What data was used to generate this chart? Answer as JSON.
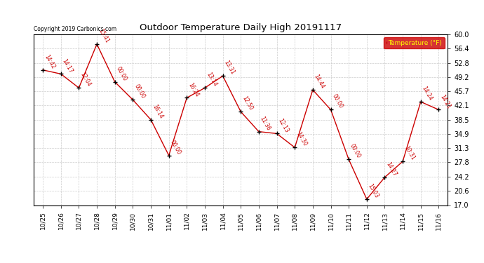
{
  "title": "Outdoor Temperature Daily High 20191117",
  "copyright": "Copyright 2019 Carbonics.com",
  "legend_label": "Temperature (°F)",
  "x_labels": [
    "10/25",
    "10/26",
    "10/27",
    "10/28",
    "10/29",
    "10/30",
    "10/31",
    "11/01",
    "11/02",
    "11/03",
    "11/04",
    "11/05",
    "11/06",
    "11/07",
    "11/08",
    "11/09",
    "11/10",
    "11/11",
    "11/12",
    "11/13",
    "11/14",
    "11/15",
    "11/16"
  ],
  "y_values": [
    51.0,
    50.0,
    46.5,
    57.5,
    48.0,
    43.5,
    38.5,
    29.5,
    44.0,
    46.5,
    49.5,
    40.5,
    35.5,
    35.0,
    31.5,
    46.0,
    41.0,
    28.5,
    18.5,
    24.0,
    28.0,
    43.0,
    41.0
  ],
  "time_labels": [
    "14:42",
    "14:17",
    "12:04",
    "15:41",
    "00:00",
    "00:00",
    "16:14",
    "00:00",
    "16:24",
    "13:14",
    "13:31",
    "12:50",
    "11:36",
    "12:13",
    "14:30",
    "14:44",
    "00:00",
    "00:00",
    "15:03",
    "14:27",
    "10:31",
    "14:24",
    "14:21"
  ],
  "ylim": [
    17.0,
    60.0
  ],
  "yticks": [
    17.0,
    20.6,
    24.2,
    27.8,
    31.3,
    34.9,
    38.5,
    42.1,
    45.7,
    49.2,
    52.8,
    56.4,
    60.0
  ],
  "line_color": "#cc0000",
  "marker_color": "#000000",
  "label_color": "#cc0000",
  "bg_color": "#ffffff",
  "grid_color": "#cccccc",
  "title_color": "#000000",
  "legend_bg": "#cc0000",
  "legend_fg": "#ffff00"
}
